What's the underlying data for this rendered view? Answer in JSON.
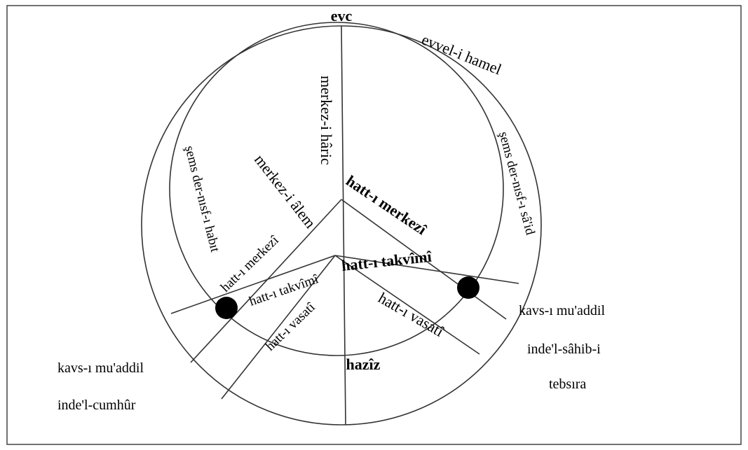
{
  "labels": {
    "apogee": "evc",
    "perigee": "hazîz",
    "first_aries": "evvel-i hamel",
    "sun_ascending": "şems der-nısf-ı sâ'id",
    "sun_descending": "şems der-nısf-ı habıt",
    "eccentric_center": "merkez-i hâric",
    "world_center": "merkez-i âlem",
    "line_center_right": "hatt-ı merkezî",
    "line_center_left": "hatt-ı merkezî",
    "line_true_left": "hatt-ı takvîmî",
    "line_true_right": "hatt-ı takvîmî",
    "line_mean_left": "hatt-ı vasatî",
    "line_mean_right": "hatt-ı vasatî",
    "arc_right": [
      "kavs-ı mu'addil",
      "inde'l-sâhib-i",
      "tebsıra"
    ],
    "arc_left": [
      "kavs-ı mu'addil",
      "inde'l-cumhûr"
    ]
  }
}
